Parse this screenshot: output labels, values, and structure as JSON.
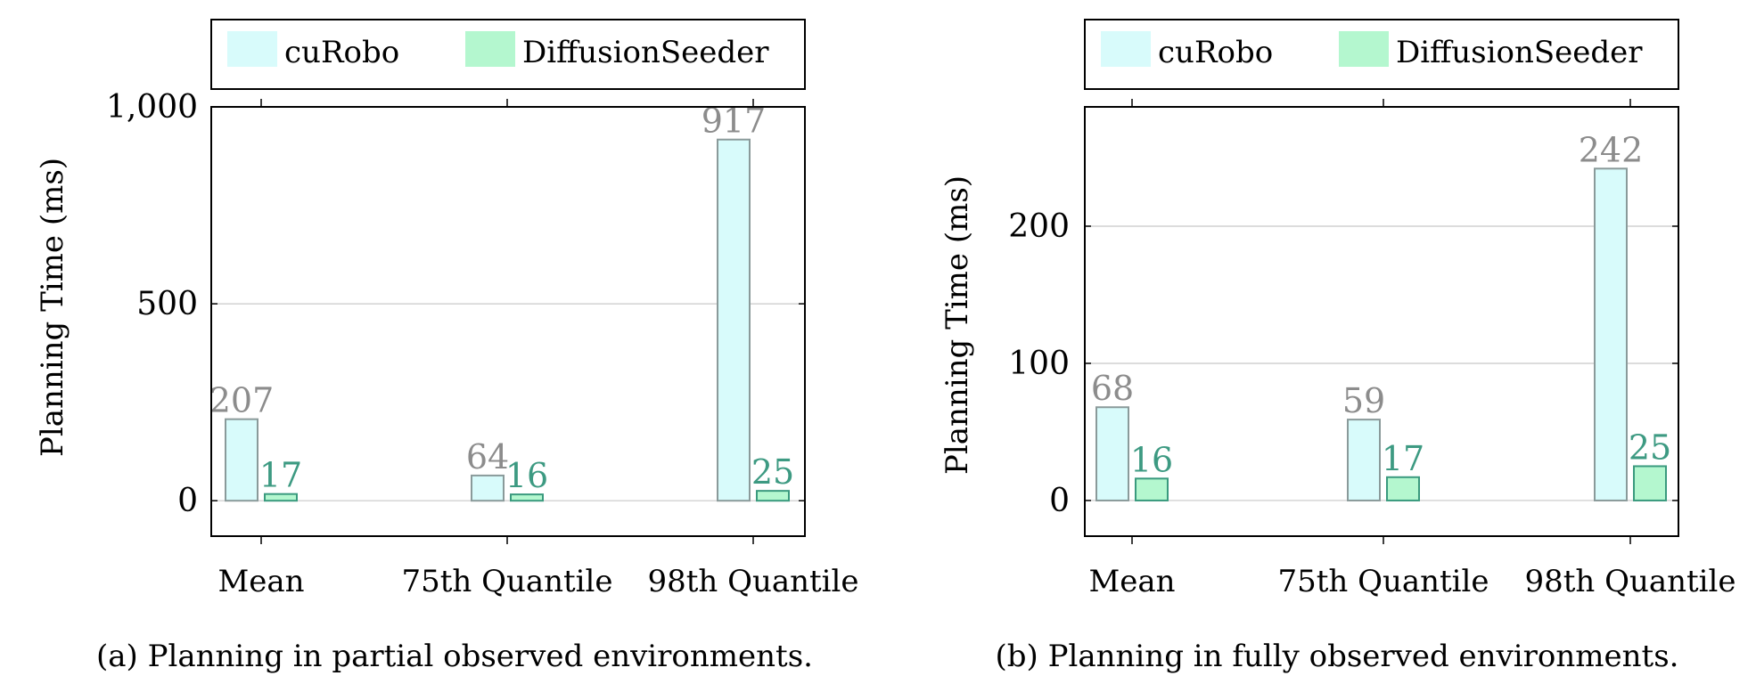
{
  "colors": {
    "curobo_fill": "#d8fbfb",
    "curobo_stroke": "#8a9a9a",
    "diffusion_fill": "#b4f7cf",
    "diffusion_stroke": "#3a9a7e",
    "curobo_label": "#8c8c8c",
    "diffusion_label": "#3d9a82",
    "grid": "#c8c8c8"
  },
  "chart_data": [
    {
      "type": "bar",
      "categories": [
        "Mean",
        "75th Quantile",
        "98th Quantile"
      ],
      "series": [
        {
          "name": "cuRobo",
          "values": [
            207,
            64,
            917
          ]
        },
        {
          "name": "DiffusionSeeder",
          "values": [
            17,
            16,
            25
          ]
        }
      ],
      "ylabel": "Planning Time (ms)",
      "xlabel": "",
      "ylim": [
        -90,
        1000
      ],
      "yticks": [
        0,
        500,
        1000
      ],
      "ytick_labels": [
        "0",
        "500",
        "1,000"
      ],
      "grid": true,
      "legend": "top",
      "caption": "(a) Planning in partial observed environments."
    },
    {
      "type": "bar",
      "categories": [
        "Mean",
        "75th Quantile",
        "98th Quantile"
      ],
      "series": [
        {
          "name": "cuRobo",
          "values": [
            68,
            59,
            242
          ]
        },
        {
          "name": "DiffusionSeeder",
          "values": [
            16,
            17,
            25
          ]
        }
      ],
      "ylabel": "Planning Time (ms)",
      "xlabel": "",
      "ylim": [
        -26,
        287
      ],
      "yticks": [
        0,
        100,
        200
      ],
      "ytick_labels": [
        "0",
        "100",
        "200"
      ],
      "grid": true,
      "legend": "top",
      "caption": "(b) Planning in fully observed environments."
    }
  ]
}
